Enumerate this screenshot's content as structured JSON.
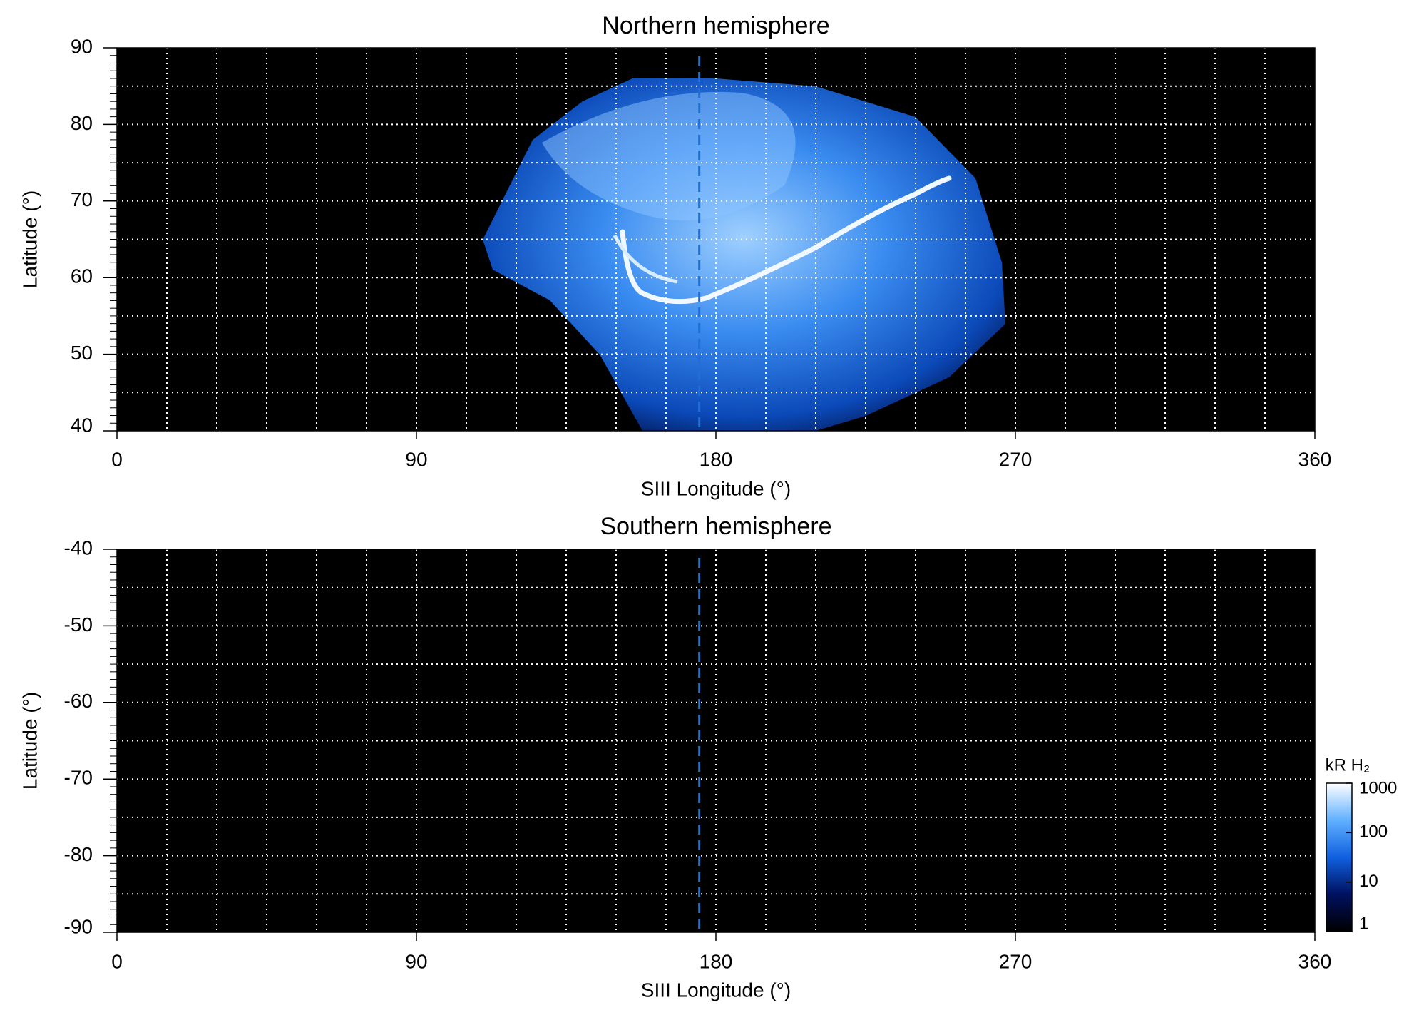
{
  "chart_data": [
    {
      "type": "heatmap",
      "title": "Northern hemisphere",
      "x_label": "SIII Longitude (°)",
      "y_label": "Latitude (°)",
      "xlim": [
        0,
        360
      ],
      "xticks": [
        0,
        90,
        180,
        270,
        360
      ],
      "ylim": [
        40,
        90
      ],
      "yticks": [
        40,
        50,
        60,
        70,
        80,
        90
      ],
      "xgrid_step": 15,
      "ygrid_step": 5,
      "yminor_step": 1,
      "grid": true,
      "background": "#000000",
      "vline_x": 175,
      "vline_color": "#1f6fd6"
    },
    {
      "type": "heatmap",
      "title": "Southern hemisphere",
      "x_label": "SIII Longitude (°)",
      "y_label": "Latitude (°)",
      "xlim": [
        0,
        360
      ],
      "xticks": [
        0,
        90,
        180,
        270,
        360
      ],
      "ylim": [
        -90,
        -40
      ],
      "yticks": [
        -90,
        -80,
        -70,
        -60,
        -50,
        -40
      ],
      "xgrid_step": 15,
      "ygrid_step": 5,
      "yminor_step": 1,
      "grid": true,
      "background": "#000000",
      "vline_x": 175,
      "vline_color": "#1f6fd6",
      "colorbar": {
        "label": "kR H₂",
        "scale": "log",
        "lim": [
          1,
          1000
        ],
        "ticks": [
          1,
          10,
          100,
          1000
        ],
        "colors": [
          "#000000",
          "#00105e",
          "#1060e0",
          "#60b0ff",
          "#ffffff"
        ]
      }
    }
  ]
}
